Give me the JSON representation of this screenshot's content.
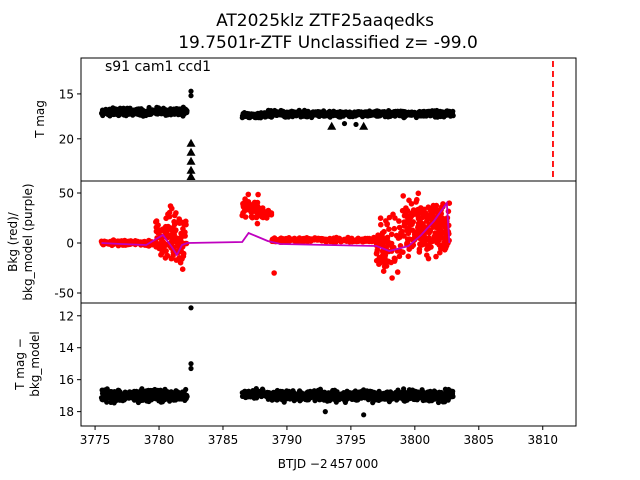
{
  "figure": {
    "title_line1": "AT2025klz  ZTF25aaqedks",
    "title_line2": "19.7501r-ZTF Unclassified z= -99.0",
    "annotation": "s91 cam1 ccd1",
    "xlabel": "BTJD −2 457 000"
  },
  "chart_data": [
    {
      "type": "scatter",
      "panel": "top",
      "ylabel": "T mag",
      "ylim": [
        24.7,
        11.0
      ],
      "xlim": [
        3773.9,
        3812.6
      ],
      "yticks": [
        15,
        20
      ],
      "marker_color": "#000000",
      "bands": [
        {
          "x0": 3775.5,
          "x1": 3782.2,
          "center": 17.0,
          "spread": 0.6
        },
        {
          "x0": 3786.5,
          "x1": 3788.5,
          "center": 17.4,
          "spread": 0.4
        },
        {
          "x0": 3788.5,
          "x1": 3803.0,
          "center": 17.2,
          "spread": 0.5
        }
      ],
      "points": [
        [
          3782.5,
          14.7
        ],
        [
          3782.5,
          15.2
        ],
        [
          3794.5,
          18.3
        ],
        [
          3795.4,
          18.4
        ]
      ],
      "upper_limits": [
        [
          3782.5,
          20.5
        ],
        [
          3782.5,
          21.5
        ],
        [
          3782.5,
          22.5
        ],
        [
          3782.5,
          23.5
        ],
        [
          3782.5,
          24.2
        ],
        [
          3793.5,
          18.6
        ],
        [
          3796.0,
          18.6
        ]
      ],
      "vline": {
        "x": 3810.8,
        "color": "#ff0000",
        "style": "dashed"
      }
    },
    {
      "type": "scatter",
      "panel": "middle",
      "ylabel": "Bkg (red)/\nbkg_model (purple)",
      "ylim": [
        -60,
        62
      ],
      "xlim": [
        3773.9,
        3812.6
      ],
      "yticks": [
        50,
        0,
        -50
      ],
      "series": [
        {
          "name": "Bkg",
          "color": "#ff0000",
          "marker": "dot"
        },
        {
          "name": "bkg_model",
          "color": "#bf00bf",
          "marker": "line",
          "x": [
            3775.5,
            3777,
            3779,
            3780.3,
            3781,
            3781.4,
            3781.8,
            3782.2,
            3786.5,
            3787,
            3788.5,
            3789.5,
            3797,
            3798,
            3799.5,
            3800.5,
            3801.5,
            3802.5,
            3802.7
          ],
          "y": [
            0,
            -1,
            -2,
            8,
            -4,
            -12,
            -2,
            0,
            1,
            10,
            2,
            -1,
            -3,
            -8,
            -3,
            8,
            22,
            40,
            0
          ]
        }
      ]
    },
    {
      "type": "scatter",
      "panel": "bottom",
      "ylabel": "T mag −\nbkg_model",
      "ylim": [
        18.9,
        11.2
      ],
      "xlim": [
        3773.9,
        3812.6
      ],
      "yticks": [
        12,
        14,
        16,
        18
      ],
      "xticks": [
        3775,
        3780,
        3785,
        3790,
        3795,
        3800,
        3805,
        3810
      ],
      "marker_color": "#000000",
      "bands": [
        {
          "x0": 3775.5,
          "x1": 3782.2,
          "center": 17.0,
          "spread": 0.55
        },
        {
          "x0": 3786.5,
          "x1": 3788.5,
          "center": 16.9,
          "spread": 0.4
        },
        {
          "x0": 3788.5,
          "x1": 3803.0,
          "center": 17.0,
          "spread": 0.5
        }
      ],
      "points": [
        [
          3782.5,
          11.5
        ],
        [
          3782.5,
          15.0
        ],
        [
          3782.5,
          15.3
        ],
        [
          3793.0,
          18.0
        ],
        [
          3796.0,
          18.2
        ]
      ]
    }
  ]
}
